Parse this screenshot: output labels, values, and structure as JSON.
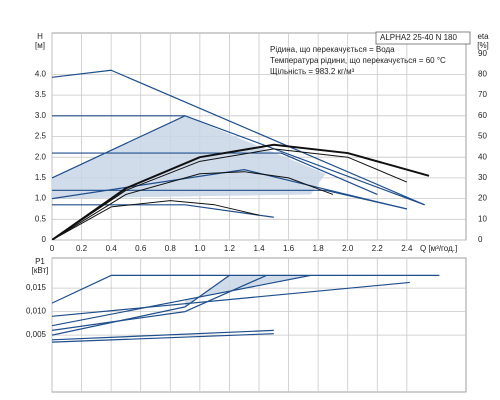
{
  "chart_data": [
    {
      "type": "line",
      "title": "ALPHA2 25-40 N 180",
      "notes": [
        "Рідина, що перекачується = Вода",
        "Температура рідини, що перекачується = 60 °C",
        "Щільність = 983.2 кг/м³"
      ],
      "ylabel": [
        "H",
        "[м]"
      ],
      "y2label": [
        "eta",
        "[%]"
      ],
      "xlabel": "Q [м³/год.]",
      "xlim": [
        0,
        2.8
      ],
      "ylim": [
        0,
        5
      ],
      "y2lim": [
        0,
        100
      ],
      "xticks": [
        0,
        0.2,
        0.4,
        0.6,
        0.8,
        {
          "value": 1,
          "label": "1.0"
        },
        1.2,
        1.4,
        1.6,
        1.8,
        {
          "value": 2,
          "label": "2.0"
        },
        2.2,
        2.4
      ],
      "yticks": [
        0,
        0.5,
        {
          "value": 1,
          "label": "1.0"
        },
        1.5,
        {
          "value": 2,
          "label": "2.0"
        },
        2.5,
        {
          "value": 3,
          "label": "3.0"
        },
        3.5,
        {
          "value": 4,
          "label": "4.0"
        }
      ],
      "y2ticks": [
        0,
        10,
        20,
        30,
        40,
        50,
        60,
        70,
        80,
        90
      ],
      "grid": true,
      "series": [
        {
          "color": "#c9d6e8",
          "fill": true,
          "x": [
            0,
            0.9,
            1.85,
            1.75,
            0
          ],
          "y": [
            1.5,
            3.0,
            1.6,
            1.1,
            1.0
          ]
        },
        {
          "color": "#1f4e8c",
          "x": [
            0,
            0.4,
            2.52
          ],
          "y": [
            3.93,
            4.1,
            0.85
          ]
        },
        {
          "color": "#1f4e8c",
          "x": [
            0,
            0.9,
            2.52
          ],
          "y": [
            1.5,
            3.0,
            0.85
          ]
        },
        {
          "color": "#1f4e8c",
          "x": [
            0,
            0.9
          ],
          "y": [
            3.0,
            3.0
          ]
        },
        {
          "color": "#1f4e8c",
          "x": [
            0,
            1.55,
            2.2
          ],
          "y": [
            2.1,
            2.1,
            1.1
          ]
        },
        {
          "color": "#1f4e8c",
          "x": [
            0,
            1.85,
            2.4
          ],
          "y": [
            1.2,
            1.2,
            0.75
          ]
        },
        {
          "color": "#1f4e8c",
          "x": [
            0,
            1.3,
            2.4
          ],
          "y": [
            1.0,
            1.7,
            0.75
          ]
        },
        {
          "color": "#1f4e8c",
          "x": [
            0,
            0.9,
            1.5
          ],
          "y": [
            0.85,
            0.85,
            0.55
          ]
        },
        {
          "color": "#111111",
          "axis": "y2",
          "width": 2,
          "x": [
            0,
            0.5,
            1.0,
            1.5,
            2.0,
            2.55
          ],
          "y": [
            0,
            25,
            40,
            46,
            42,
            31
          ]
        },
        {
          "color": "#111111",
          "axis": "y2",
          "width": 1,
          "x": [
            0,
            0.5,
            1.0,
            1.5,
            2.0,
            2.4
          ],
          "y": [
            0,
            24,
            38,
            44,
            40,
            28
          ]
        },
        {
          "color": "#111111",
          "axis": "y2",
          "width": 1,
          "x": [
            0,
            0.5,
            1.0,
            1.3,
            1.6,
            1.9
          ],
          "y": [
            0,
            22,
            32,
            33,
            30,
            22
          ]
        },
        {
          "color": "#111111",
          "axis": "y2",
          "width": 1,
          "x": [
            0,
            0.4,
            0.8,
            1.1,
            1.4
          ],
          "y": [
            0,
            16,
            19,
            17,
            12
          ]
        }
      ]
    },
    {
      "type": "line",
      "ylabel": [
        "P1",
        "[кВт]"
      ],
      "xlim": [
        0,
        2.8
      ],
      "ylim": [
        -0.0071,
        0.0214
      ],
      "xticks": [
        0,
        0.2,
        0.4,
        0.6,
        0.8,
        1,
        1.2,
        1.4,
        1.6,
        1.8,
        2,
        2.2,
        2.4
      ],
      "xtick_labels": false,
      "yticks": [
        {
          "value": 0.005,
          "label": "0,005"
        },
        {
          "value": 0.01,
          "label": "0,010"
        },
        {
          "value": 0.015,
          "label": "0,015"
        }
      ],
      "grid": true,
      "series": [
        {
          "color": "#c9d6e8",
          "fill": true,
          "x": [
            0.9,
            1.2,
            1.75,
            0.9
          ],
          "y": [
            0.011,
            0.0177,
            0.0177,
            0.0125
          ]
        },
        {
          "color": "#1f4e8c",
          "x": [
            0,
            0.4,
            2.62
          ],
          "y": [
            0.0118,
            0.0177,
            0.0177
          ]
        },
        {
          "color": "#1f4e8c",
          "x": [
            0,
            2.42
          ],
          "y": [
            0.009,
            0.0162
          ]
        },
        {
          "color": "#1f4e8c",
          "x": [
            0,
            0.9,
            1.75
          ],
          "y": [
            0.007,
            0.0125,
            0.0177
          ]
        },
        {
          "color": "#1f4e8c",
          "x": [
            0,
            0.9,
            1.45
          ],
          "y": [
            0.006,
            0.01,
            0.0177
          ]
        },
        {
          "color": "#1f4e8c",
          "x": [
            0,
            0.9,
            1.2
          ],
          "y": [
            0.005,
            0.011,
            0.0177
          ]
        },
        {
          "color": "#1f4e8c",
          "x": [
            0,
            1.5
          ],
          "y": [
            0.004,
            0.006
          ]
        },
        {
          "color": "#1f4e8c",
          "x": [
            0,
            1.5
          ],
          "y": [
            0.0035,
            0.0053
          ]
        }
      ]
    }
  ]
}
